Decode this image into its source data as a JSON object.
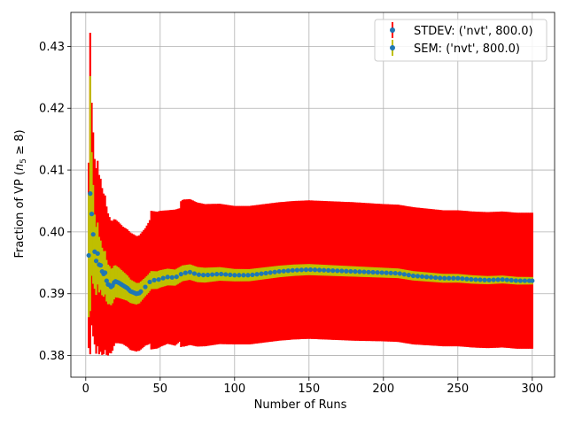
{
  "chart_data": {
    "type": "scatter",
    "title": "",
    "xlabel": "Number of Runs",
    "ylabel_prefix": "Fraction of VP (",
    "ylabel_math_n": "n",
    "ylabel_math_sub": "5",
    "ylabel_math_rest": " ≥ 8)",
    "xlim": [
      -10,
      315
    ],
    "ylim": [
      0.3765,
      0.4355
    ],
    "xticks": [
      0,
      50,
      100,
      150,
      200,
      250,
      300
    ],
    "yticks": [
      0.38,
      0.39,
      0.4,
      0.41,
      0.42,
      0.43
    ],
    "grid": true,
    "legend_position": "top-right",
    "x_range": [
      2,
      300
    ],
    "mean_curve": {
      "x": [
        2,
        3,
        4,
        5,
        6,
        7,
        8,
        9,
        10,
        11,
        12,
        13,
        14,
        15,
        16,
        17,
        18,
        19,
        20,
        22,
        24,
        26,
        28,
        30,
        32,
        34,
        36,
        38,
        40,
        42,
        44,
        46,
        48,
        50,
        55,
        60,
        65,
        70,
        75,
        80,
        90,
        100,
        110,
        120,
        130,
        140,
        150,
        160,
        170,
        180,
        190,
        200,
        210,
        220,
        230,
        240,
        250,
        260,
        270,
        280,
        290,
        300
      ],
      "y": [
        0.3962,
        0.4062,
        0.4029,
        0.3996,
        0.3968,
        0.3953,
        0.3965,
        0.3947,
        0.3946,
        0.3936,
        0.3932,
        0.3934,
        0.3921,
        0.3915,
        0.3914,
        0.3911,
        0.3913,
        0.3918,
        0.392,
        0.3918,
        0.3915,
        0.3912,
        0.3909,
        0.3904,
        0.3902,
        0.39,
        0.3901,
        0.3906,
        0.3911,
        0.3916,
        0.3922,
        0.3922,
        0.3922,
        0.3924,
        0.3927,
        0.3926,
        0.3933,
        0.3935,
        0.3931,
        0.393,
        0.3932,
        0.393,
        0.393,
        0.3933,
        0.3936,
        0.3938,
        0.3939,
        0.3938,
        0.3937,
        0.3936,
        0.3935,
        0.3934,
        0.3933,
        0.3929,
        0.3927,
        0.3925,
        0.3925,
        0.3923,
        0.3922,
        0.3923,
        0.3921,
        0.3921
      ]
    },
    "stdev_halfwidth": {
      "x": [
        2,
        3,
        4,
        6,
        8,
        10,
        12,
        14,
        16,
        20,
        25,
        30,
        35,
        40,
        43,
        44,
        50,
        55,
        60,
        63,
        64,
        66,
        70,
        80,
        100,
        120,
        140,
        160,
        180,
        200,
        220,
        240,
        260,
        280,
        300
      ],
      "y": [
        0.015,
        0.026,
        0.018,
        0.015,
        0.015,
        0.014,
        0.013,
        0.012,
        0.011,
        0.01,
        0.0095,
        0.0095,
        0.0093,
        0.0095,
        0.01,
        0.0112,
        0.011,
        0.0108,
        0.011,
        0.0108,
        0.0118,
        0.0119,
        0.0118,
        0.0115,
        0.0112,
        0.0112,
        0.0112,
        0.0112,
        0.0112,
        0.0111,
        0.0111,
        0.011,
        0.011,
        0.011,
        0.011
      ]
    },
    "sem_halfwidth": {
      "x": [
        2,
        3,
        4,
        6,
        8,
        10,
        15,
        20,
        30,
        40,
        50,
        60,
        80,
        100,
        150,
        200,
        250,
        300
      ],
      "y": [
        0.01,
        0.019,
        0.01,
        0.006,
        0.005,
        0.004,
        0.0032,
        0.0026,
        0.0019,
        0.0015,
        0.0014,
        0.0013,
        0.0012,
        0.001,
        0.0009,
        0.0008,
        0.0007,
        0.0006
      ]
    },
    "marker_every": 1,
    "marker_start": 2,
    "marker_end": 37,
    "marker_step_after": 3,
    "series": [
      {
        "name": "STDEV: ('nvt', 800.0)",
        "errorbar_color": "#ff0000"
      },
      {
        "name": "SEM: ('nvt', 800.0)",
        "errorbar_color": "#bfbf00"
      }
    ],
    "marker_color": "#1f77b4"
  }
}
